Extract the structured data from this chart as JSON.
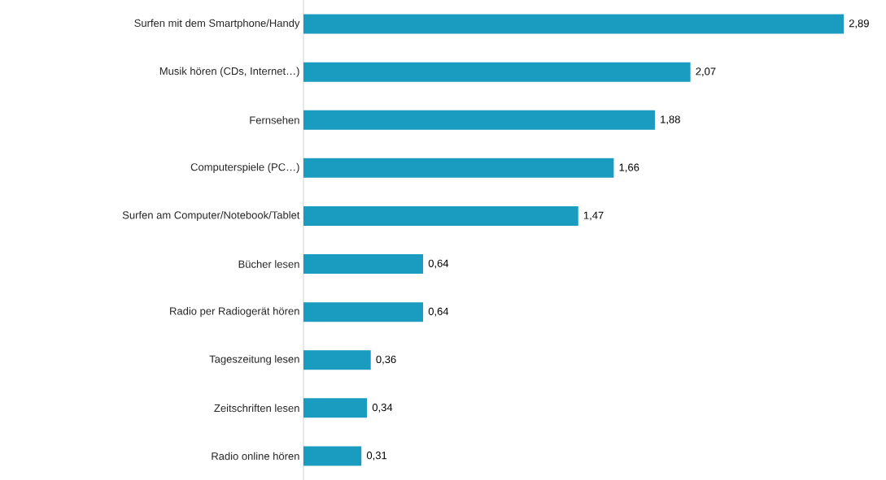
{
  "chart_data": {
    "type": "bar",
    "orientation": "horizontal",
    "categories": [
      "Surfen mit dem Smartphone/Handy",
      "Musik hören (CDs, Internet…)",
      "Fernsehen",
      "Computerspiele (PC…)",
      "Surfen am Computer/Notebook/Tablet",
      "Bücher lesen",
      "Radio per Radiogerät hören",
      "Tageszeitung lesen",
      "Zeitschriften lesen",
      "Radio online hören"
    ],
    "values": [
      2.89,
      2.07,
      1.88,
      1.66,
      1.47,
      0.64,
      0.64,
      0.36,
      0.34,
      0.31
    ],
    "value_labels": [
      "2,89",
      "2,07",
      "1,88",
      "1,66",
      "1,47",
      "0,64",
      "0,64",
      "0,36",
      "0,34",
      "0,31"
    ],
    "color": "#1a9bc0"
  }
}
